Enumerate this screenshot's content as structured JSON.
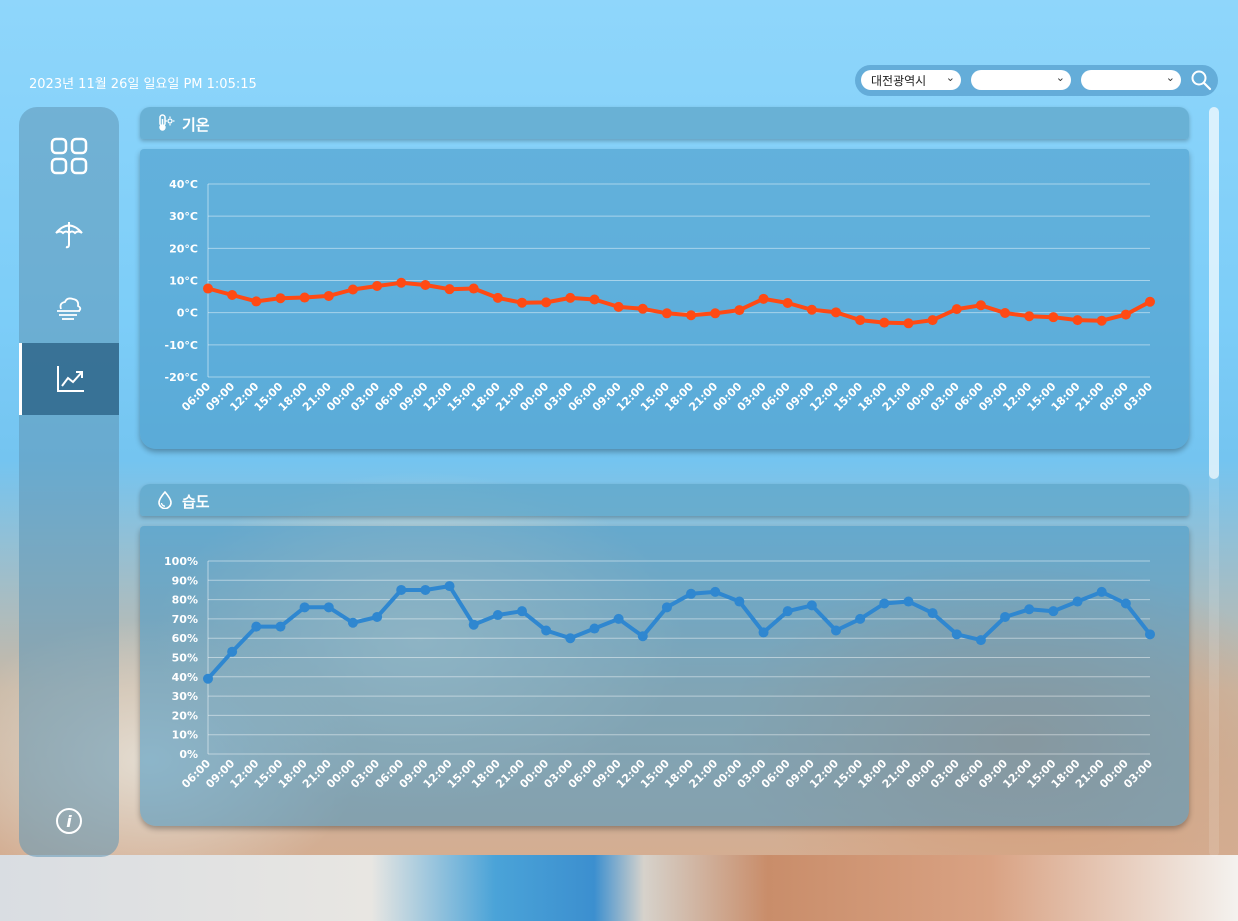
{
  "header": {
    "datetime": "2023년 11월 26일 일요일 PM 1:05:15"
  },
  "location": {
    "city": "대전광역시",
    "district": "",
    "dong": ""
  },
  "sidebar": {
    "items": [
      {
        "icon": "grid-icon",
        "active": false
      },
      {
        "icon": "umbrella-icon",
        "active": false
      },
      {
        "icon": "fog-cloud-icon",
        "active": false
      },
      {
        "icon": "trend-chart-icon",
        "active": true
      }
    ],
    "info_icon": "info-icon"
  },
  "panels": {
    "temperature": {
      "title": "기온",
      "icon": "thermometer-icon"
    },
    "humidity": {
      "title": "습도",
      "icon": "water-drop-icon"
    }
  },
  "chart_data": [
    {
      "type": "line",
      "name": "temperature",
      "color": "#ff4a14",
      "y_ticks": [
        "40°C",
        "30°C",
        "20°C",
        "10°C",
        "0°C",
        "-10°C",
        "-20°C"
      ],
      "ylim": [
        -20,
        40
      ],
      "categories": [
        "06:00",
        "09:00",
        "12:00",
        "15:00",
        "18:00",
        "21:00",
        "00:00",
        "03:00",
        "06:00",
        "09:00",
        "12:00",
        "15:00",
        "18:00",
        "21:00",
        "00:00",
        "03:00",
        "06:00",
        "09:00",
        "12:00",
        "15:00",
        "18:00",
        "21:00",
        "00:00",
        "03:00",
        "06:00",
        "09:00",
        "12:00",
        "15:00",
        "18:00",
        "21:00",
        "00:00",
        "03:00",
        "06:00",
        "09:00",
        "12:00",
        "15:00",
        "18:00",
        "21:00",
        "00:00",
        "03:00"
      ],
      "values": [
        7.5,
        5.5,
        3.5,
        4.5,
        4.7,
        5.2,
        7.2,
        8.3,
        9.3,
        8.6,
        7.3,
        7.5,
        4.6,
        3.1,
        3.2,
        4.6,
        4.1,
        1.8,
        1.2,
        -0.2,
        -0.8,
        -0.2,
        0.8,
        4.3,
        3.0,
        0.9,
        0.1,
        -2.3,
        -3.1,
        -3.3,
        -2.3,
        1.1,
        2.3,
        -0.1,
        -1.1,
        -1.4,
        -2.3,
        -2.5,
        -0.6,
        3.4
      ]
    },
    {
      "type": "line",
      "name": "humidity",
      "color": "#2f87d0",
      "y_ticks": [
        "100%",
        "90%",
        "80%",
        "70%",
        "60%",
        "50%",
        "40%",
        "30%",
        "20%",
        "10%",
        "0%"
      ],
      "ylim": [
        0,
        100
      ],
      "categories": [
        "06:00",
        "09:00",
        "12:00",
        "15:00",
        "18:00",
        "21:00",
        "00:00",
        "03:00",
        "06:00",
        "09:00",
        "12:00",
        "15:00",
        "18:00",
        "21:00",
        "00:00",
        "03:00",
        "06:00",
        "09:00",
        "12:00",
        "15:00",
        "18:00",
        "21:00",
        "00:00",
        "03:00",
        "06:00",
        "09:00",
        "12:00",
        "15:00",
        "18:00",
        "21:00",
        "00:00",
        "03:00",
        "06:00",
        "09:00",
        "12:00",
        "15:00",
        "18:00",
        "21:00",
        "00:00",
        "03:00"
      ],
      "values": [
        39,
        53,
        66,
        66,
        76,
        76,
        68,
        71,
        85,
        85,
        87,
        67,
        72,
        74,
        64,
        60,
        65,
        70,
        61,
        76,
        83,
        84,
        79,
        63,
        74,
        77,
        64,
        70,
        78,
        79,
        73,
        62,
        59,
        71,
        75,
        74,
        79,
        84,
        78,
        62
      ]
    }
  ]
}
